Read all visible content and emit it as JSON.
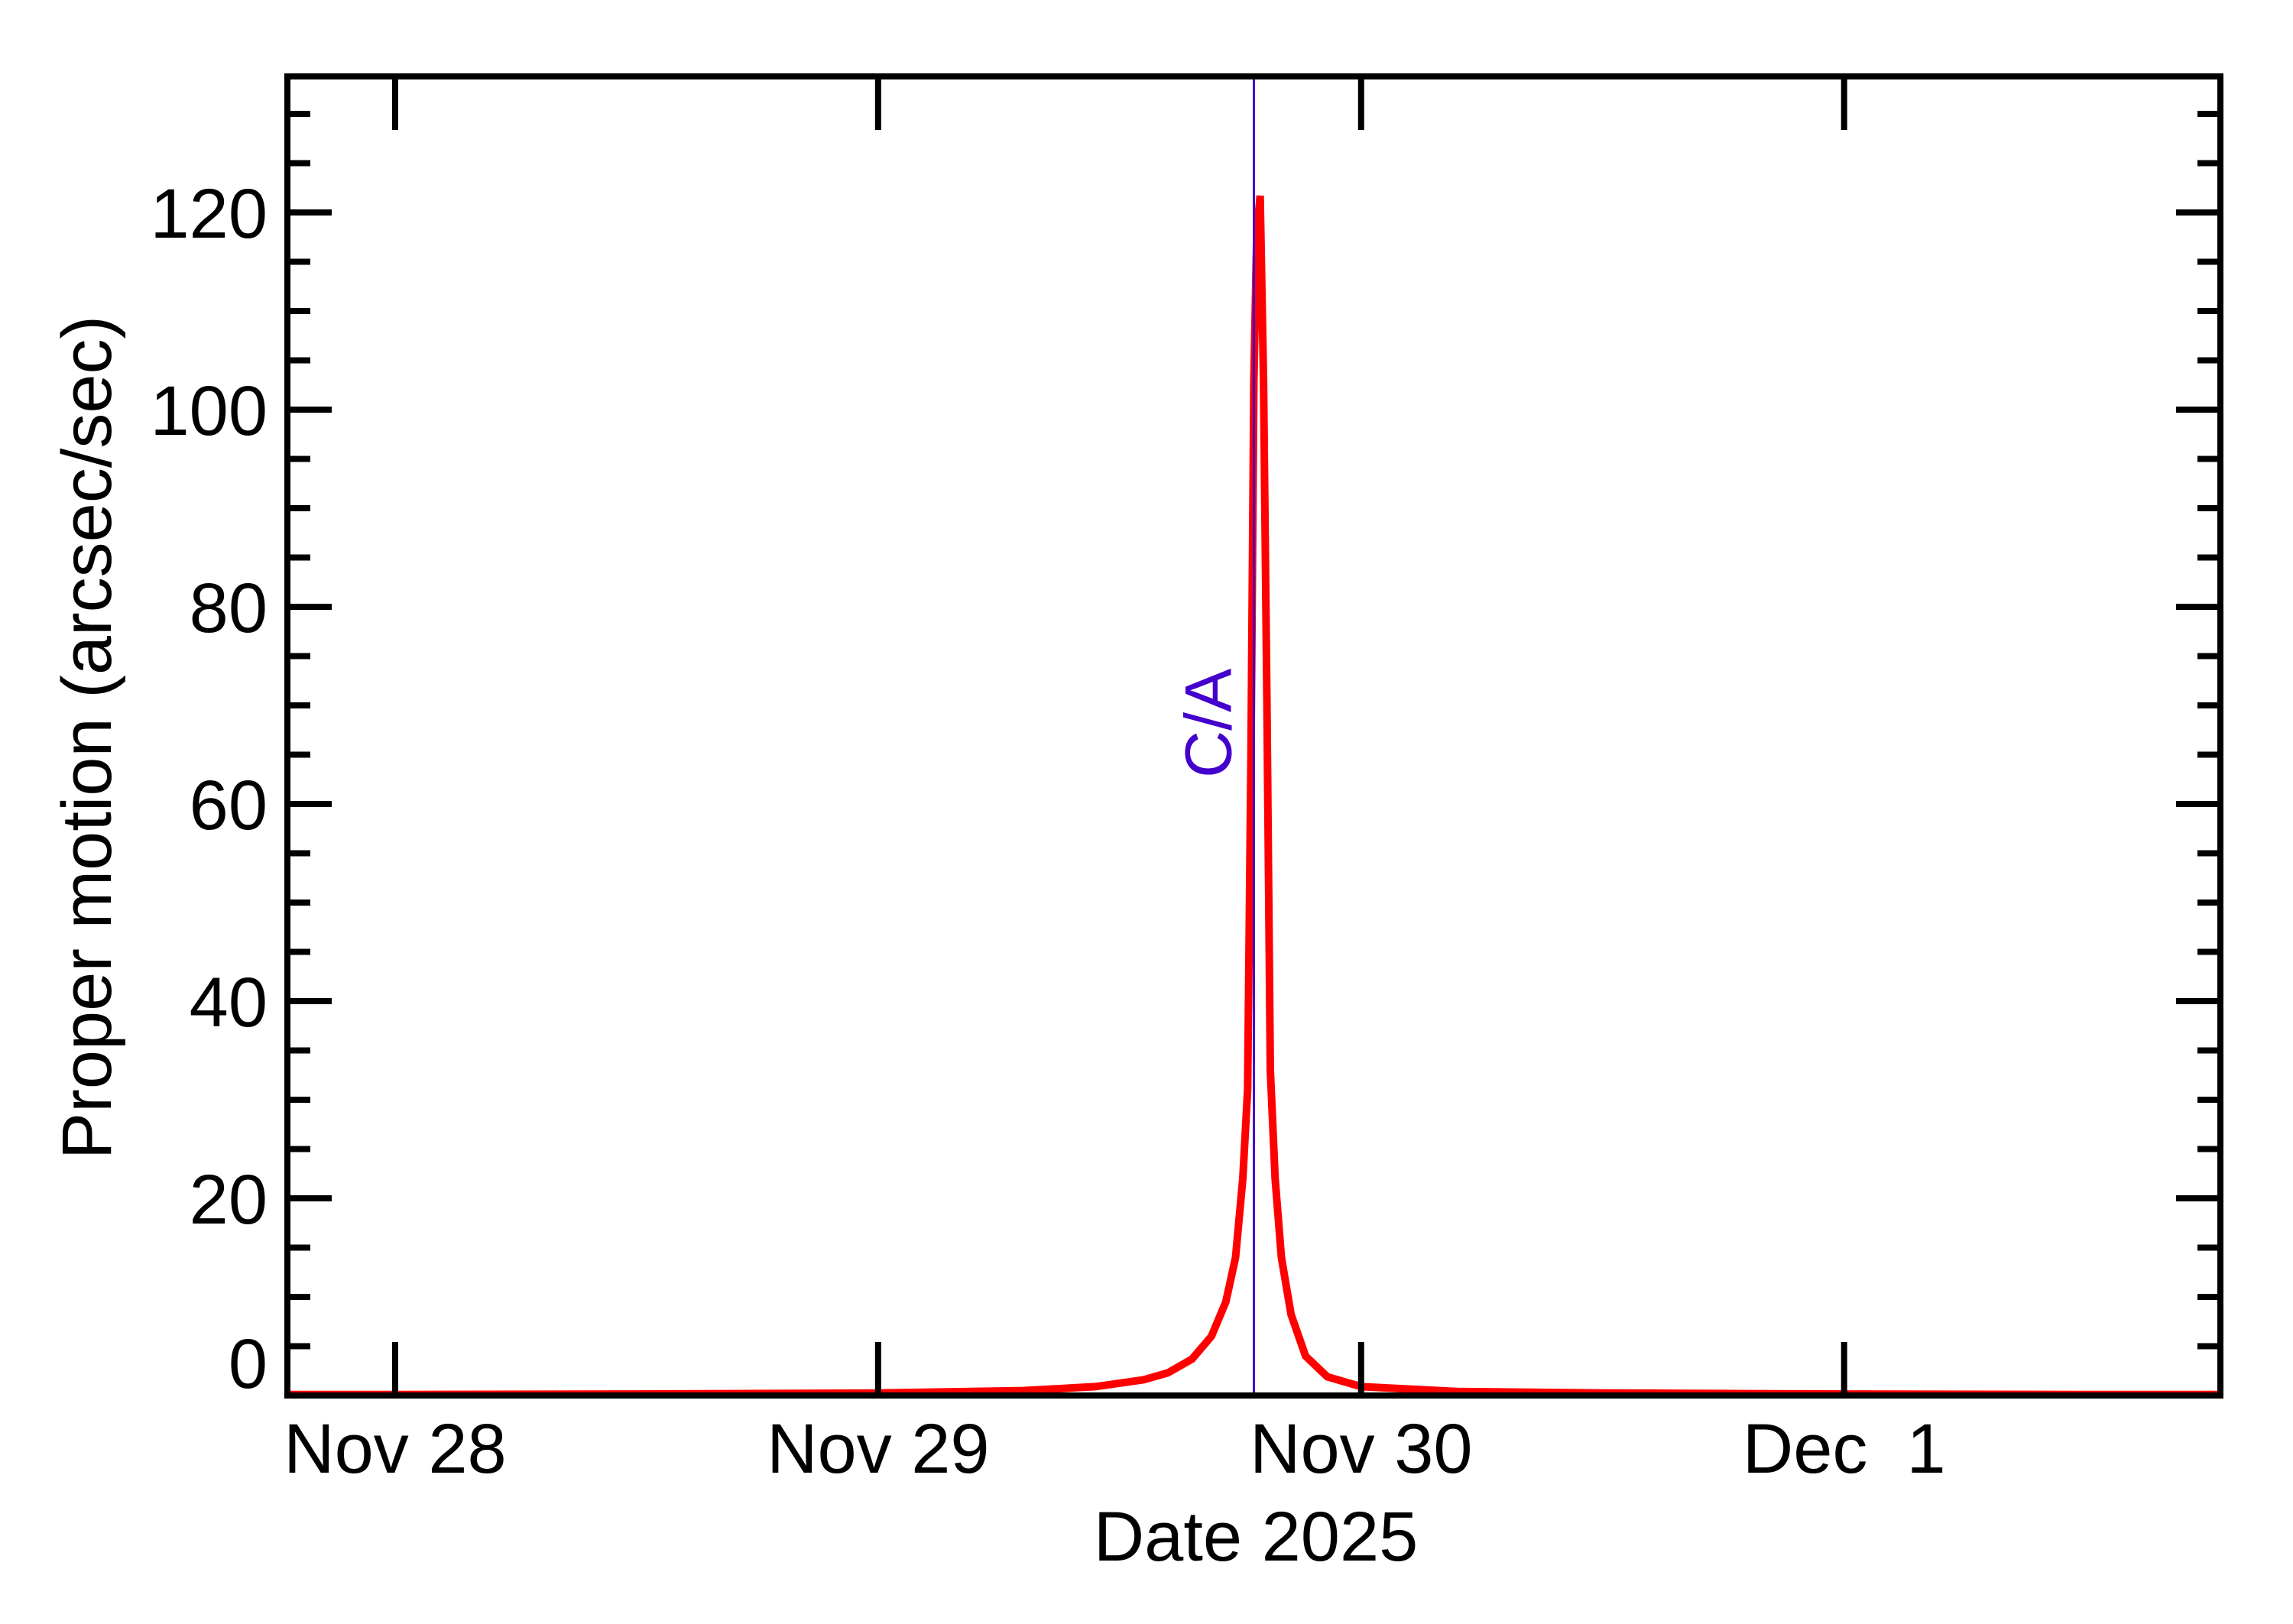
{
  "chart_data": {
    "type": "line",
    "title": "",
    "xlabel": "Date 2025",
    "ylabel": "Proper motion (arcsec/sec)",
    "x_unit": "days since Nov 28 2025 00:00",
    "xlim": [
      -0.223,
      3.779
    ],
    "ylim": [
      0,
      133.8
    ],
    "grid": false,
    "legend": null,
    "x_ticks": [
      {
        "value": 0,
        "label": "Nov 28"
      },
      {
        "value": 1,
        "label": "Nov 29"
      },
      {
        "value": 2,
        "label": "Nov 30"
      },
      {
        "value": 3,
        "label": "Dec  1"
      }
    ],
    "y_ticks": [
      {
        "value": 0,
        "label": "0"
      },
      {
        "value": 20,
        "label": "20"
      },
      {
        "value": 40,
        "label": "40"
      },
      {
        "value": 60,
        "label": "60"
      },
      {
        "value": 80,
        "label": "80"
      },
      {
        "value": 100,
        "label": "100"
      },
      {
        "value": 120,
        "label": "120"
      }
    ],
    "y_minor_step": 5,
    "series": [
      {
        "name": "Proper motion",
        "color": "#ff0000",
        "x": [
          -0.223,
          0.0,
          0.5,
          1.0,
          1.3,
          1.45,
          1.55,
          1.6,
          1.65,
          1.69,
          1.72,
          1.74,
          1.755,
          1.765,
          1.772,
          1.778,
          1.784,
          1.791,
          1.798,
          1.805,
          1.812,
          1.822,
          1.835,
          1.855,
          1.885,
          1.93,
          2.0,
          2.2,
          2.5,
          3.0,
          3.5,
          3.779
        ],
        "values": [
          0.1,
          0.1,
          0.15,
          0.25,
          0.5,
          0.9,
          1.6,
          2.3,
          3.7,
          6.0,
          9.5,
          14.0,
          22.0,
          31.0,
          65.0,
          103.0,
          118.0,
          121.7,
          103.0,
          70.0,
          33.0,
          22.0,
          14.0,
          8.2,
          4.0,
          1.9,
          0.9,
          0.4,
          0.25,
          0.15,
          0.1,
          0.1
        ]
      }
    ],
    "annotations": [
      {
        "type": "vline",
        "x": 1.778,
        "color": "#4400cc",
        "label": "C/A"
      }
    ]
  },
  "labels": {
    "xlabel": "Date 2025",
    "ylabel": "Proper motion (arcsec/sec)",
    "ca": "C/A"
  },
  "colors": {
    "curve": "#ff0000",
    "closest_approach": "#4400cc",
    "axes": "#000000"
  }
}
